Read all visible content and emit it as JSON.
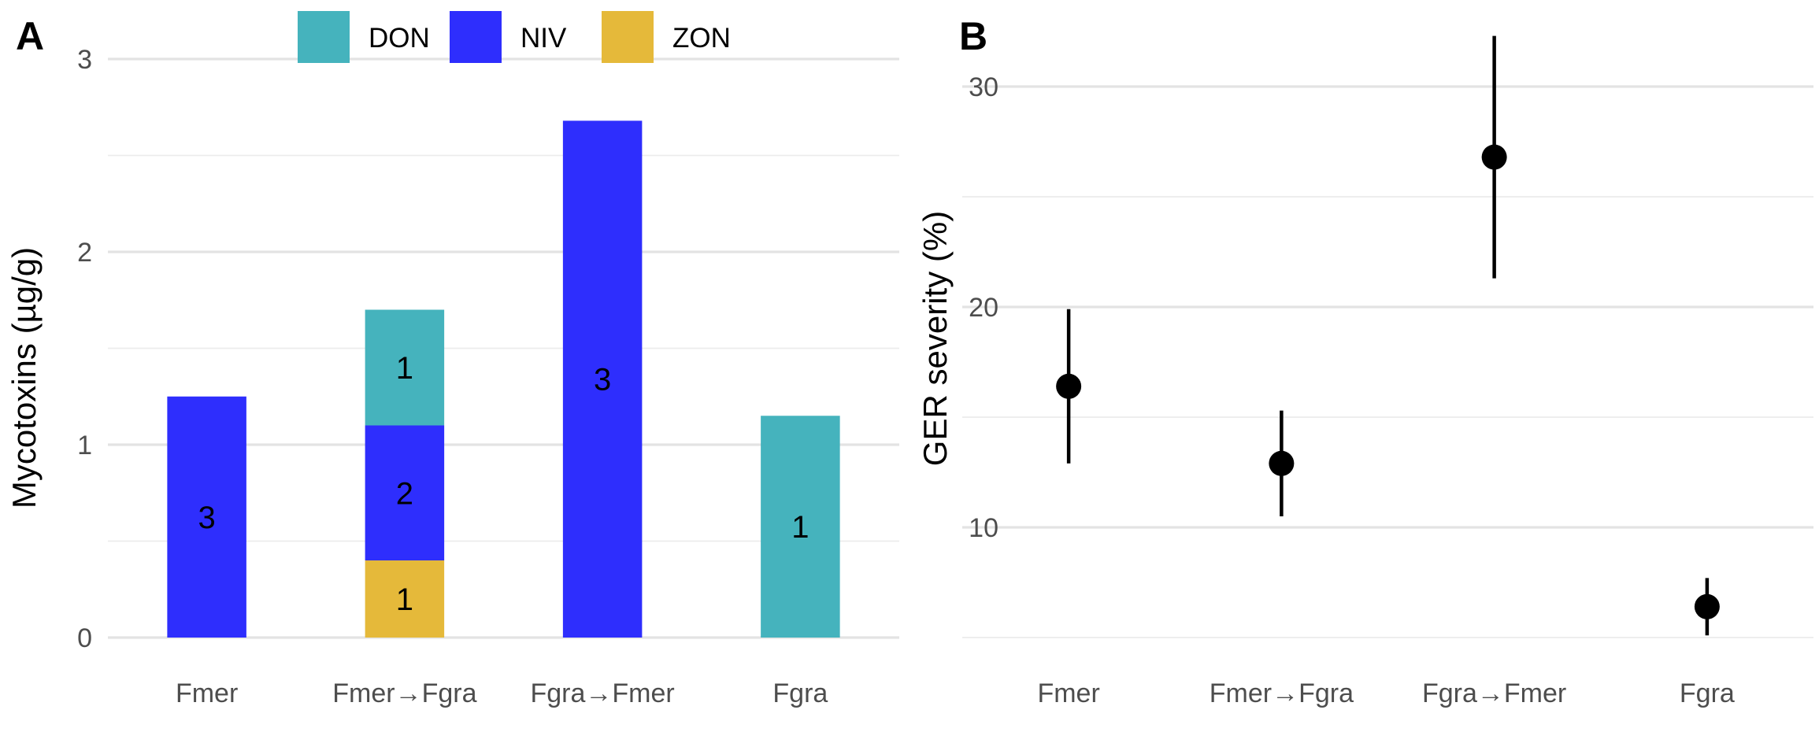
{
  "panels": {
    "a_letter": "A",
    "b_letter": "B"
  },
  "colors": {
    "DON": "#45b3bd",
    "NIV": "#2e2efd",
    "ZON": "#e5b93a"
  },
  "chart_data": [
    {
      "type": "bar",
      "stacked": true,
      "categories": [
        "Fmer",
        "Fmer→Fgra",
        "Fgra→Fmer",
        "Fgra"
      ],
      "series": [
        {
          "name": "ZON",
          "values": [
            0,
            0.4,
            0,
            0
          ],
          "labels": [
            "",
            "1",
            "",
            ""
          ]
        },
        {
          "name": "NIV",
          "values": [
            1.25,
            0.7,
            2.68,
            0
          ],
          "labels": [
            "3",
            "2",
            "3",
            ""
          ]
        },
        {
          "name": "DON",
          "values": [
            0,
            0.6,
            0,
            1.15
          ],
          "labels": [
            "",
            "1",
            "",
            "1"
          ]
        }
      ],
      "ylabel": "Mycotoxins (µg/g)",
      "ylim": [
        0,
        3
      ],
      "yticks": [
        "0",
        "1",
        "2",
        "3"
      ],
      "legend": {
        "position": "top",
        "entries": [
          "DON",
          "NIV",
          "ZON"
        ]
      },
      "grid": true
    },
    {
      "type": "scatter",
      "error_bars": true,
      "categories": [
        "Fmer",
        "Fmer→Fgra",
        "Fgra→Fmer",
        "Fgra"
      ],
      "points": [
        {
          "y": 16.4,
          "lower": 12.9,
          "upper": 19.9
        },
        {
          "y": 12.9,
          "lower": 10.5,
          "upper": 15.3
        },
        {
          "y": 26.8,
          "lower": 21.3,
          "upper": 32.3
        },
        {
          "y": 6.4,
          "lower": 5.1,
          "upper": 7.7
        }
      ],
      "ylabel": "GER severity (%)",
      "ylim": [
        5,
        32.5
      ],
      "yticks": [
        "10",
        "20",
        "30"
      ],
      "grid": true
    }
  ]
}
